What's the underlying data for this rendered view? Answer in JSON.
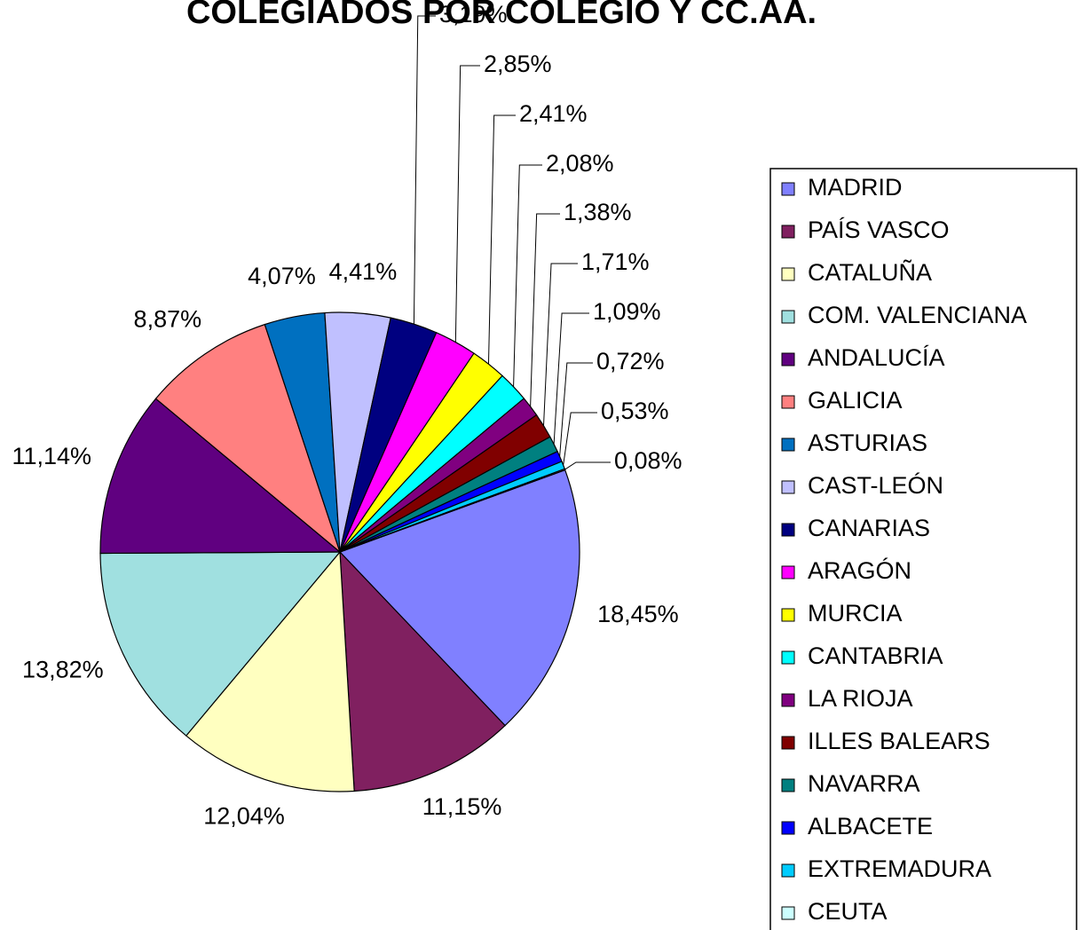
{
  "chart_data": {
    "type": "pie",
    "title": "COLEGIADOS POR COLEGIO Y CC.AA.",
    "categories": [
      "MADRID",
      "PAÍS VASCO",
      "CATALUÑA",
      "COM. VALENCIANA",
      "ANDALUCÍA",
      "GALICIA",
      "ASTURIAS",
      "CAST-LEÓN",
      "CANARIAS",
      "ARAGÓN",
      "MURCIA",
      "CANTABRIA",
      "LA RIOJA",
      "ILLES BALEARS",
      "NAVARRA",
      "ALBACETE",
      "EXTREMADURA",
      "CEUTA"
    ],
    "values": [
      18.45,
      11.15,
      12.04,
      13.82,
      11.14,
      8.87,
      4.07,
      4.41,
      3.19,
      2.85,
      2.41,
      2.08,
      1.38,
      1.71,
      1.09,
      0.72,
      0.53,
      0.08
    ],
    "value_labels": [
      "18,45%",
      "11,15%",
      "12,04%",
      "13,82%",
      "11,14%",
      "8,87%",
      "4,07%",
      "4,41%",
      "3,19%",
      "2,85%",
      "2,41%",
      "2,08%",
      "1,38%",
      "1,71%",
      "1,09%",
      "0,72%",
      "0,53%",
      "0,08%"
    ],
    "colors": [
      "#8080ff",
      "#802060",
      "#ffffc0",
      "#a0e0e0",
      "#600080",
      "#ff8080",
      "#0070c0",
      "#c0c0ff",
      "#000080",
      "#ff00ff",
      "#ffff00",
      "#00ffff",
      "#800080",
      "#800000",
      "#008080",
      "#0000ff",
      "#00ccff",
      "#ccffff"
    ],
    "legend": "right"
  }
}
